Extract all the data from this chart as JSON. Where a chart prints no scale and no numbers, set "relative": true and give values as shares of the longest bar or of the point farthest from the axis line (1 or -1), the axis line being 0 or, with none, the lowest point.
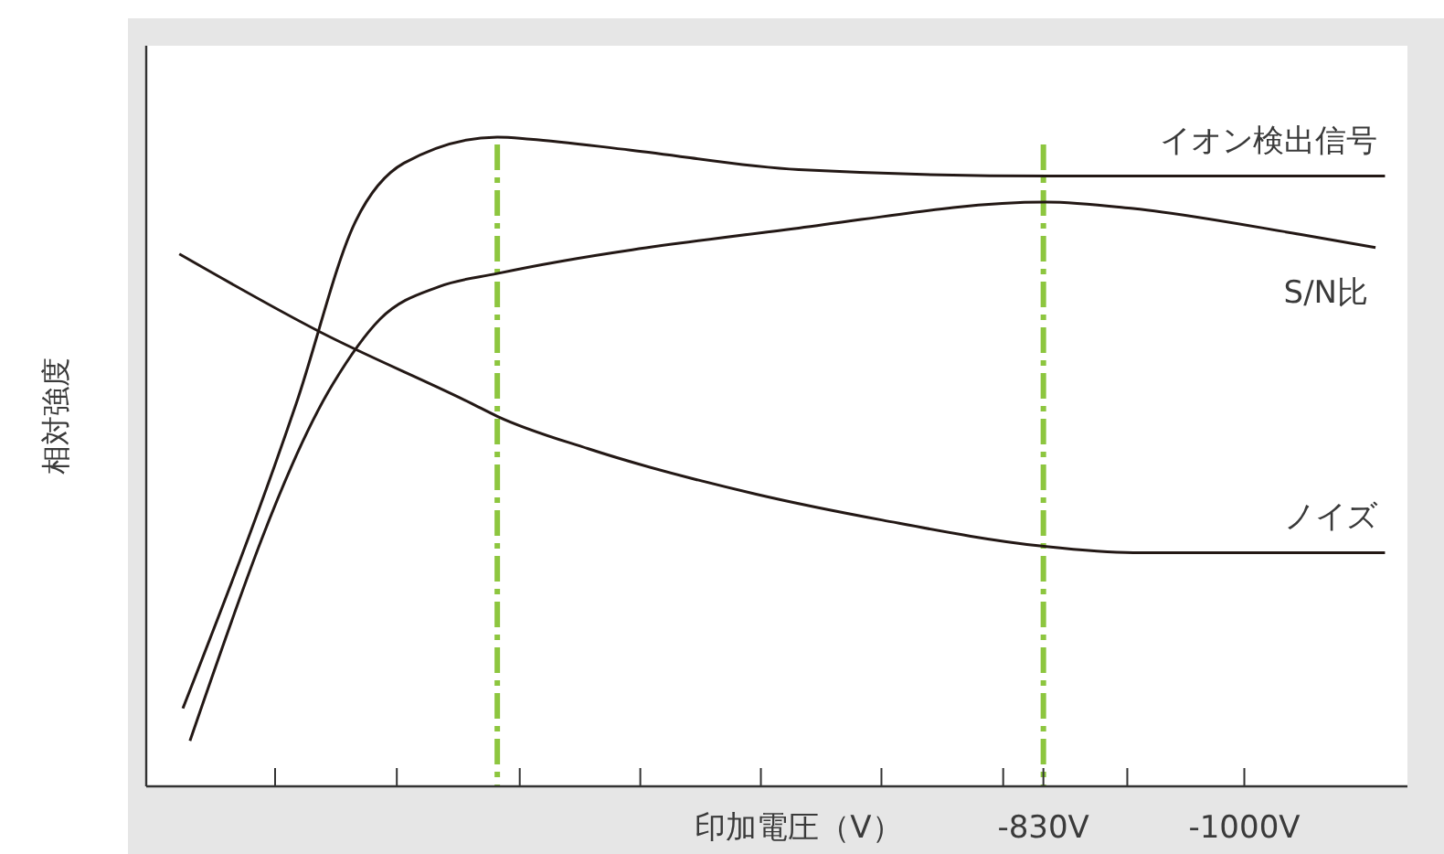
{
  "chart_data": {
    "type": "line",
    "ylabel": "相対強度",
    "xlabel": "印加電圧（V）",
    "relative": true,
    "legend": false,
    "grid": false,
    "xlim": [
      -71,
      -1138
    ],
    "xticks": [
      {
        "value": -180,
        "label": null
      },
      {
        "value": -283,
        "label": null
      },
      {
        "value": -387,
        "label": null
      },
      {
        "value": -489,
        "label": null
      },
      {
        "value": -591,
        "label": null
      },
      {
        "value": -693,
        "label": null
      },
      {
        "value": -796,
        "label": null
      },
      {
        "value": -830,
        "label": "-830V"
      },
      {
        "value": -901,
        "label": null
      },
      {
        "value": -1000,
        "label": "-1000V"
      }
    ],
    "ref_lines": [
      {
        "axis": "x",
        "value": -368,
        "label": null,
        "color": "#8dc63f",
        "line_style": "dashed"
      },
      {
        "axis": "x",
        "value": -830,
        "label": null,
        "color": "#8dc63f",
        "line_style": "dashed"
      }
    ],
    "series": [
      {
        "name": "イオン検出信号",
        "color": "#231815",
        "x": [
          -102,
          -198,
          -248,
          -289,
          -368,
          -396,
          -481,
          -623,
          -836,
          -906,
          -1119
        ],
        "values": [
          0.12,
          0.59,
          0.87,
          0.96,
          1,
          0.997,
          0.98,
          0.95,
          0.94,
          0.94,
          0.94
        ]
      },
      {
        "name": "S/N比",
        "color": "#231815",
        "x": [
          -108,
          -229,
          -269,
          -319,
          -368,
          -623,
          -832,
          -906,
          -1048,
          -1111
        ],
        "values": [
          0.07,
          0.62,
          0.72,
          0.77,
          0.79,
          0.86,
          0.9,
          0.89,
          0.85,
          0.83
        ]
      },
      {
        "name": "ノイズ",
        "color": "#231815",
        "x": [
          -99,
          -218,
          -346,
          -368,
          -445,
          -587,
          -694,
          -829,
          -906,
          -1119
        ],
        "values": [
          0.82,
          0.7,
          0.59,
          0.57,
          0.52,
          0.45,
          0.41,
          0.37,
          0.36,
          0.36
        ]
      }
    ]
  }
}
